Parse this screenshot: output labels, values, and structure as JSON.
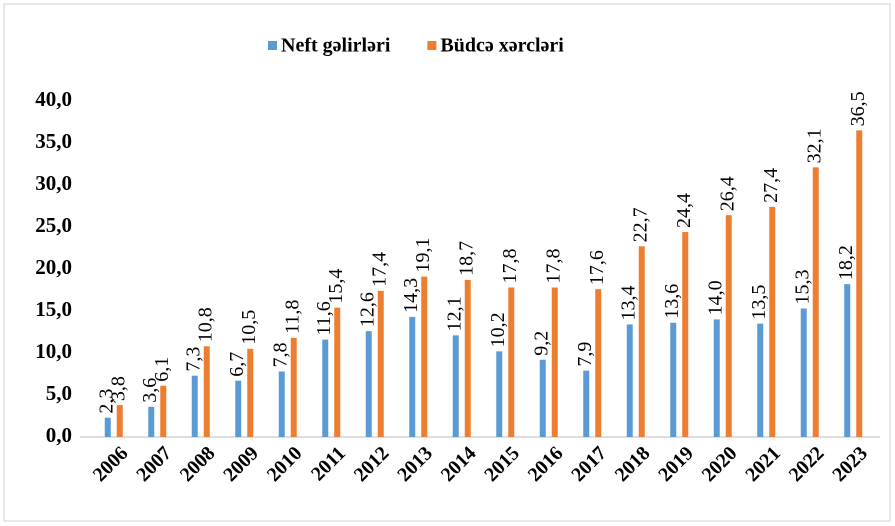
{
  "chart_data": {
    "type": "bar",
    "categories": [
      "2006",
      "2007",
      "2008",
      "2009",
      "2010",
      "2011",
      "2012",
      "2013",
      "2014",
      "2015",
      "2016",
      "2017",
      "2018",
      "2019",
      "2020",
      "2021",
      "2022",
      "2023"
    ],
    "series": [
      {
        "name": "Neft gəlirləri",
        "color": "#5b9bd5",
        "values": [
          2.3,
          3.6,
          7.3,
          6.7,
          7.8,
          11.6,
          12.6,
          14.3,
          12.1,
          10.2,
          9.2,
          7.9,
          13.4,
          13.6,
          14.0,
          13.5,
          15.3,
          18.2
        ],
        "value_labels": [
          "2,3",
          "3,6",
          "7,3",
          "6,7",
          "7,8",
          "11,6",
          "12,6",
          "14,3",
          "12,1",
          "10,2",
          "9,2",
          "7,9",
          "13,4",
          "13,6",
          "14,0",
          "13,5",
          "15,3",
          "18,2"
        ]
      },
      {
        "name": "Büdcə xərcləri",
        "color": "#ed7d31",
        "values": [
          3.8,
          6.1,
          10.8,
          10.5,
          11.8,
          15.4,
          17.4,
          19.1,
          18.7,
          17.8,
          17.8,
          17.6,
          22.7,
          24.4,
          26.4,
          27.4,
          32.1,
          36.5
        ],
        "value_labels": [
          "3,8",
          "6,1",
          "10,8",
          "10,5",
          "11,8",
          "15,4",
          "17,4",
          "19,1",
          "18,7",
          "17,8",
          "17,8",
          "17,6",
          "22,7",
          "24,4",
          "26,4",
          "27,4",
          "32,1",
          "36,5"
        ]
      }
    ],
    "ylim": [
      0,
      40
    ],
    "yticks": [
      {
        "value": 0,
        "label": "0,0"
      },
      {
        "value": 5,
        "label": "5,0"
      },
      {
        "value": 10,
        "label": "10,0"
      },
      {
        "value": 15,
        "label": "15,0"
      },
      {
        "value": 20,
        "label": "20,0"
      },
      {
        "value": 25,
        "label": "25,0"
      },
      {
        "value": 30,
        "label": "30,0"
      },
      {
        "value": 35,
        "label": "35,0"
      },
      {
        "value": 40,
        "label": "40,0"
      }
    ],
    "legend": "top"
  }
}
